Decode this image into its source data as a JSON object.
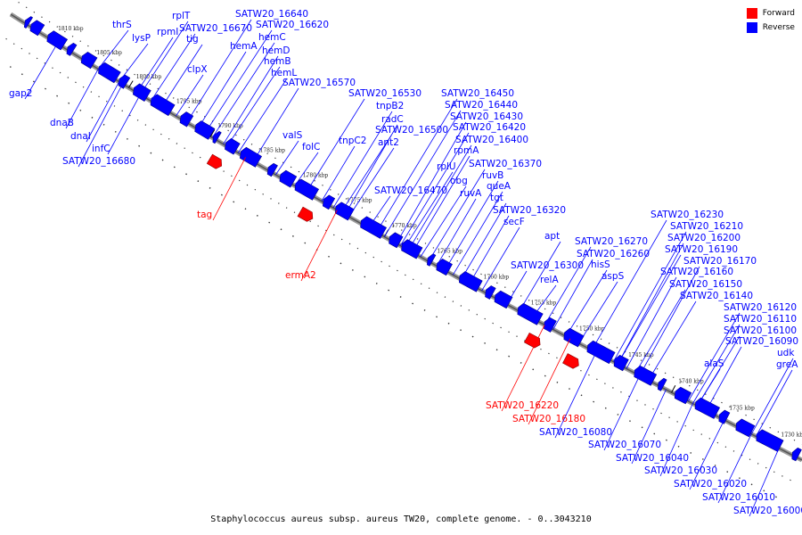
{
  "caption": "Staphylococcus aureus subsp. aureus TW20, complete genome. - 0..3043210",
  "legend": [
    {
      "label": "Forward",
      "color": "#ff0000"
    },
    {
      "label": "Reverse",
      "color": "#0000ff"
    }
  ],
  "colors": {
    "forward": "#ff0000",
    "reverse": "#0000ff",
    "axis": "#555555"
  },
  "kbp_ticks": [
    "1810 kbp",
    "1805 kbp",
    "1800 kbp",
    "1795 kbp",
    "1790 kbp",
    "1785 kbp",
    "1780 kbp",
    "1775 kbp",
    "1770 kbp",
    "1765 kbp",
    "1760 kbp",
    "1755 kbp",
    "1750 kbp",
    "1745 kbp",
    "1740 kbp",
    "1735 kbp",
    "1730 kbp"
  ],
  "labels": [
    {
      "text": "thrS",
      "strand": "reverse"
    },
    {
      "text": "lysP",
      "strand": "reverse"
    },
    {
      "text": "rplT",
      "strand": "reverse"
    },
    {
      "text": "rpmI",
      "strand": "reverse"
    },
    {
      "text": "tig",
      "strand": "reverse"
    },
    {
      "text": "SATW20_16670",
      "strand": "reverse"
    },
    {
      "text": "SATW20_16640",
      "strand": "reverse"
    },
    {
      "text": "SATW20_16620",
      "strand": "reverse"
    },
    {
      "text": "hemC",
      "strand": "reverse"
    },
    {
      "text": "hemA",
      "strand": "reverse"
    },
    {
      "text": "hemD",
      "strand": "reverse"
    },
    {
      "text": "hemB",
      "strand": "reverse"
    },
    {
      "text": "hemL",
      "strand": "reverse"
    },
    {
      "text": "clpX",
      "strand": "reverse"
    },
    {
      "text": "SATW20_16570",
      "strand": "reverse"
    },
    {
      "text": "SATW20_16530",
      "strand": "reverse"
    },
    {
      "text": "valS",
      "strand": "reverse"
    },
    {
      "text": "folC",
      "strand": "reverse"
    },
    {
      "text": "tnpB2",
      "strand": "reverse"
    },
    {
      "text": "radC",
      "strand": "reverse"
    },
    {
      "text": "SATW20_16500",
      "strand": "reverse"
    },
    {
      "text": "tnpC2",
      "strand": "reverse"
    },
    {
      "text": "ant2",
      "strand": "reverse"
    },
    {
      "text": "SATW20_16450",
      "strand": "reverse"
    },
    {
      "text": "SATW20_16440",
      "strand": "reverse"
    },
    {
      "text": "SATW20_16430",
      "strand": "reverse"
    },
    {
      "text": "SATW20_16420",
      "strand": "reverse"
    },
    {
      "text": "SATW20_16400",
      "strand": "reverse"
    },
    {
      "text": "rpmA",
      "strand": "reverse"
    },
    {
      "text": "rplU",
      "strand": "reverse"
    },
    {
      "text": "SATW20_16370",
      "strand": "reverse"
    },
    {
      "text": "obg",
      "strand": "reverse"
    },
    {
      "text": "ruvB",
      "strand": "reverse"
    },
    {
      "text": "SATW20_16470",
      "strand": "reverse"
    },
    {
      "text": "ruvA",
      "strand": "reverse"
    },
    {
      "text": "queA",
      "strand": "reverse"
    },
    {
      "text": "tgt",
      "strand": "reverse"
    },
    {
      "text": "SATW20_16320",
      "strand": "reverse"
    },
    {
      "text": "secF",
      "strand": "reverse"
    },
    {
      "text": "apt",
      "strand": "reverse"
    },
    {
      "text": "SATW20_16270",
      "strand": "reverse"
    },
    {
      "text": "SATW20_16260",
      "strand": "reverse"
    },
    {
      "text": "SATW20_16300",
      "strand": "reverse"
    },
    {
      "text": "hisS",
      "strand": "reverse"
    },
    {
      "text": "relA",
      "strand": "reverse"
    },
    {
      "text": "aspS",
      "strand": "reverse"
    },
    {
      "text": "SATW20_16230",
      "strand": "reverse"
    },
    {
      "text": "SATW20_16210",
      "strand": "reverse"
    },
    {
      "text": "SATW20_16200",
      "strand": "reverse"
    },
    {
      "text": "SATW20_16190",
      "strand": "reverse"
    },
    {
      "text": "SATW20_16170",
      "strand": "reverse"
    },
    {
      "text": "SATW20_16160",
      "strand": "reverse"
    },
    {
      "text": "SATW20_16150",
      "strand": "reverse"
    },
    {
      "text": "SATW20_16140",
      "strand": "reverse"
    },
    {
      "text": "SATW20_16120",
      "strand": "reverse"
    },
    {
      "text": "SATW20_16110",
      "strand": "reverse"
    },
    {
      "text": "SATW20_16100",
      "strand": "reverse"
    },
    {
      "text": "SATW20_16090",
      "strand": "reverse"
    },
    {
      "text": "alaS",
      "strand": "reverse"
    },
    {
      "text": "udk",
      "strand": "reverse"
    },
    {
      "text": "greA",
      "strand": "reverse"
    },
    {
      "text": "gap2",
      "strand": "reverse"
    },
    {
      "text": "dnaB",
      "strand": "reverse"
    },
    {
      "text": "dnaI",
      "strand": "reverse"
    },
    {
      "text": "infC",
      "strand": "reverse"
    },
    {
      "text": "SATW20_16680",
      "strand": "reverse"
    },
    {
      "text": "tag",
      "strand": "forward"
    },
    {
      "text": "ermA2",
      "strand": "forward"
    },
    {
      "text": "SATW20_16220",
      "strand": "forward"
    },
    {
      "text": "SATW20_16180",
      "strand": "forward"
    },
    {
      "text": "SATW20_16080",
      "strand": "reverse"
    },
    {
      "text": "SATW20_16070",
      "strand": "reverse"
    },
    {
      "text": "SATW20_16040",
      "strand": "reverse"
    },
    {
      "text": "SATW20_16030",
      "strand": "reverse"
    },
    {
      "text": "SATW20_16020",
      "strand": "reverse"
    },
    {
      "text": "SATW20_16010",
      "strand": "reverse"
    },
    {
      "text": "SATW20_16000",
      "strand": "reverse"
    }
  ]
}
